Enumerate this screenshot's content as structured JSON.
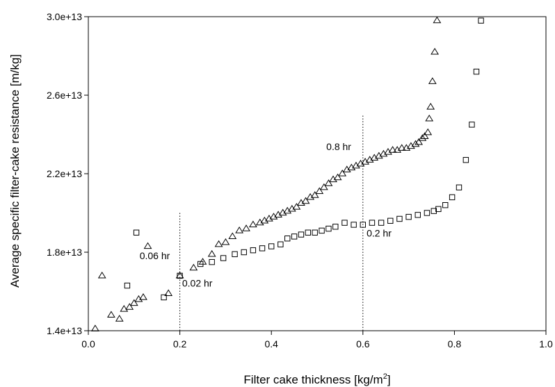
{
  "chart_data": {
    "type": "scatter",
    "title": "",
    "xlabel": "Filter cake thickness [kg/m",
    "xlabel_sup": "2",
    "xlabel_end": "]",
    "ylabel": "Average specific filter-cake resistance [m/kg]",
    "xlim": [
      0.0,
      1.0
    ],
    "ylim": [
      14000000000000.0,
      30000000000000.0
    ],
    "x_ticks": [
      0.0,
      0.2,
      0.4,
      0.6,
      0.8,
      1.0
    ],
    "x_tick_labels": [
      "0.0",
      "0.2",
      "0.4",
      "0.6",
      "0.8",
      "1.0"
    ],
    "y_ticks": [
      14000000000000.0,
      18000000000000.0,
      22000000000000.0,
      26000000000000.0,
      30000000000000.0
    ],
    "y_tick_labels": [
      "1.4e+13",
      "1.8e+13",
      "2.2e+13",
      "2.6e+13",
      "3.0e+13"
    ],
    "grid": false,
    "series": [
      {
        "marker": "triangle",
        "points": [
          [
            0.015,
            14100000000000.0
          ],
          [
            0.03,
            16800000000000.0
          ],
          [
            0.05,
            14800000000000.0
          ],
          [
            0.068,
            14600000000000.0
          ],
          [
            0.078,
            15100000000000.0
          ],
          [
            0.09,
            15200000000000.0
          ],
          [
            0.1,
            15400000000000.0
          ],
          [
            0.11,
            15600000000000.0
          ],
          [
            0.12,
            15700000000000.0
          ],
          [
            0.13,
            18300000000000.0
          ],
          [
            0.175,
            15900000000000.0
          ],
          [
            0.2,
            16800000000000.0
          ],
          [
            0.23,
            17200000000000.0
          ],
          [
            0.25,
            17500000000000.0
          ],
          [
            0.27,
            17900000000000.0
          ],
          [
            0.285,
            18400000000000.0
          ],
          [
            0.3,
            18500000000000.0
          ],
          [
            0.315,
            18800000000000.0
          ],
          [
            0.33,
            19100000000000.0
          ],
          [
            0.345,
            19200000000000.0
          ],
          [
            0.36,
            19400000000000.0
          ],
          [
            0.375,
            19500000000000.0
          ],
          [
            0.385,
            19600000000000.0
          ],
          [
            0.395,
            19700000000000.0
          ],
          [
            0.405,
            19800000000000.0
          ],
          [
            0.415,
            19900000000000.0
          ],
          [
            0.425,
            20000000000000.0
          ],
          [
            0.435,
            20100000000000.0
          ],
          [
            0.445,
            20200000000000.0
          ],
          [
            0.455,
            20300000000000.0
          ],
          [
            0.465,
            20500000000000.0
          ],
          [
            0.475,
            20600000000000.0
          ],
          [
            0.485,
            20800000000000.0
          ],
          [
            0.495,
            20900000000000.0
          ],
          [
            0.505,
            21100000000000.0
          ],
          [
            0.515,
            21300000000000.0
          ],
          [
            0.525,
            21500000000000.0
          ],
          [
            0.535,
            21700000000000.0
          ],
          [
            0.545,
            21800000000000.0
          ],
          [
            0.555,
            22000000000000.0
          ],
          [
            0.565,
            22200000000000.0
          ],
          [
            0.575,
            22300000000000.0
          ],
          [
            0.585,
            22400000000000.0
          ],
          [
            0.595,
            22500000000000.0
          ],
          [
            0.605,
            22600000000000.0
          ],
          [
            0.615,
            22700000000000.0
          ],
          [
            0.625,
            22800000000000.0
          ],
          [
            0.635,
            22900000000000.0
          ],
          [
            0.645,
            23000000000000.0
          ],
          [
            0.655,
            23100000000000.0
          ],
          [
            0.665,
            23200000000000.0
          ],
          [
            0.675,
            23200000000000.0
          ],
          [
            0.685,
            23300000000000.0
          ],
          [
            0.695,
            23300000000000.0
          ],
          [
            0.705,
            23400000000000.0
          ],
          [
            0.715,
            23500000000000.0
          ],
          [
            0.722,
            23600000000000.0
          ],
          [
            0.73,
            23800000000000.0
          ],
          [
            0.735,
            23900000000000.0
          ],
          [
            0.742,
            24100000000000.0
          ],
          [
            0.745,
            24800000000000.0
          ],
          [
            0.748,
            25400000000000.0
          ],
          [
            0.752,
            26700000000000.0
          ],
          [
            0.757,
            28200000000000.0
          ],
          [
            0.762,
            29800000000000.0
          ]
        ]
      },
      {
        "marker": "square",
        "points": [
          [
            0.085,
            16300000000000.0
          ],
          [
            0.105,
            19000000000000.0
          ],
          [
            0.165,
            15700000000000.0
          ],
          [
            0.2,
            16800000000000.0
          ],
          [
            0.245,
            17400000000000.0
          ],
          [
            0.27,
            17500000000000.0
          ],
          [
            0.295,
            17700000000000.0
          ],
          [
            0.32,
            17900000000000.0
          ],
          [
            0.34,
            18000000000000.0
          ],
          [
            0.36,
            18100000000000.0
          ],
          [
            0.38,
            18200000000000.0
          ],
          [
            0.4,
            18300000000000.0
          ],
          [
            0.42,
            18400000000000.0
          ],
          [
            0.435,
            18700000000000.0
          ],
          [
            0.45,
            18800000000000.0
          ],
          [
            0.465,
            18900000000000.0
          ],
          [
            0.48,
            19000000000000.0
          ],
          [
            0.495,
            19000000000000.0
          ],
          [
            0.51,
            19100000000000.0
          ],
          [
            0.525,
            19200000000000.0
          ],
          [
            0.54,
            19300000000000.0
          ],
          [
            0.56,
            19500000000000.0
          ],
          [
            0.58,
            19400000000000.0
          ],
          [
            0.6,
            19400000000000.0
          ],
          [
            0.62,
            19500000000000.0
          ],
          [
            0.64,
            19500000000000.0
          ],
          [
            0.66,
            19600000000000.0
          ],
          [
            0.68,
            19700000000000.0
          ],
          [
            0.7,
            19800000000000.0
          ],
          [
            0.72,
            19900000000000.0
          ],
          [
            0.74,
            20000000000000.0
          ],
          [
            0.755,
            20100000000000.0
          ],
          [
            0.765,
            20200000000000.0
          ],
          [
            0.78,
            20400000000000.0
          ],
          [
            0.795,
            20800000000000.0
          ],
          [
            0.81,
            21300000000000.0
          ],
          [
            0.825,
            22700000000000.0
          ],
          [
            0.838,
            24500000000000.0
          ],
          [
            0.848,
            27200000000000.0
          ],
          [
            0.858,
            29800000000000.0
          ]
        ]
      }
    ],
    "reference_lines": [
      {
        "x": 0.2,
        "y_top": 20000000000000.0
      },
      {
        "x": 0.6,
        "y_top": 25000000000000.0
      }
    ],
    "annotations": [
      {
        "text": "0.06 hr",
        "x": 0.112,
        "y": 17650000000000.0
      },
      {
        "text": "0.02 hr",
        "x": 0.205,
        "y": 16250000000000.0
      },
      {
        "text": "0.8 hr",
        "x": 0.52,
        "y": 23200000000000.0
      },
      {
        "text": "0.2 hr",
        "x": 0.608,
        "y": 18800000000000.0
      }
    ]
  }
}
